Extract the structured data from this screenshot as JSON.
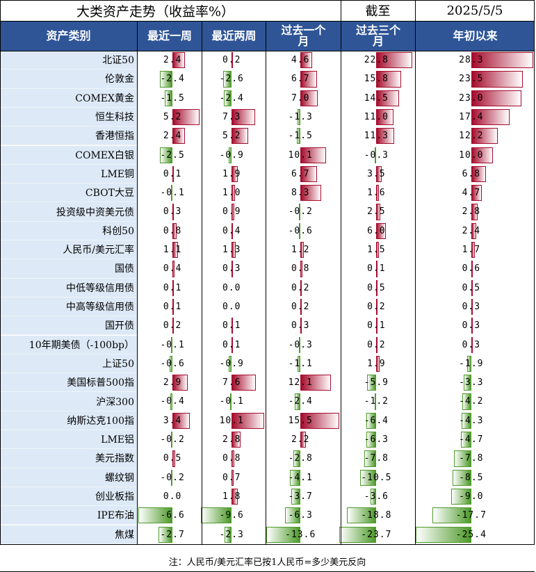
{
  "header": {
    "title": "大类资产走势（收益率%）",
    "as_of_label": "截至",
    "as_of_date": "2025/5/5"
  },
  "footnote": "注：人民币/美元汇率已按1人民币=多少美元反向",
  "colors": {
    "header_bg": "#2f5597",
    "name_bg": "#dde9f6",
    "positive": "#a50b2c",
    "negative": "#4e9a2a"
  },
  "chart_data": {
    "type": "table",
    "columns": [
      "资产类别",
      "最近一周",
      "最近两周",
      "过去一个月",
      "过去三个月",
      "年初以来"
    ],
    "rows": [
      {
        "asset": "北证50",
        "values": [
          2.4,
          0.2,
          4.6,
          22.8,
          28.3
        ]
      },
      {
        "asset": "伦敦金",
        "values": [
          -2.4,
          -2.6,
          6.7,
          15.8,
          23.5
        ]
      },
      {
        "asset": "COMEX黄金",
        "values": [
          -1.5,
          -2.4,
          7.0,
          14.5,
          23.0
        ]
      },
      {
        "asset": "恒生科技",
        "values": [
          5.2,
          7.3,
          -1.3,
          11.0,
          17.4
        ]
      },
      {
        "asset": "香港恒指",
        "values": [
          2.4,
          5.2,
          -1.5,
          11.3,
          12.2
        ]
      },
      {
        "asset": "COMEX白银",
        "values": [
          -2.5,
          -0.9,
          10.1,
          -0.3,
          10.0
        ]
      },
      {
        "asset": "LME铜",
        "values": [
          0.1,
          1.9,
          6.7,
          3.5,
          6.8
        ]
      },
      {
        "asset": "CBOT大豆",
        "values": [
          -0.1,
          1.0,
          8.3,
          1.6,
          4.7
        ]
      },
      {
        "asset": "投资级中资美元债",
        "values": [
          0.3,
          0.9,
          -0.2,
          2.5,
          2.8
        ]
      },
      {
        "asset": "科创50",
        "values": [
          0.8,
          0.4,
          -0.6,
          6.0,
          2.4
        ]
      },
      {
        "asset": "人民币/美元汇率",
        "values": [
          1.1,
          1.3,
          1.2,
          1.5,
          1.7
        ]
      },
      {
        "asset": "国债",
        "values": [
          0.4,
          0.3,
          0.8,
          0.1,
          0.6
        ]
      },
      {
        "asset": "中低等级信用债",
        "values": [
          0.1,
          0.0,
          0.2,
          0.5,
          0.5
        ]
      },
      {
        "asset": "中高等级信用债",
        "values": [
          0.1,
          0.0,
          0.2,
          0.2,
          0.3
        ]
      },
      {
        "asset": "国开债",
        "values": [
          0.2,
          0.1,
          0.3,
          0.1,
          0.3
        ]
      },
      {
        "asset": "10年期美债（-100bp）",
        "values": [
          -0.1,
          0.1,
          -0.3,
          0.2,
          0.3
        ]
      },
      {
        "asset": "上证50",
        "values": [
          -0.6,
          -0.9,
          -1.1,
          1.9,
          -1.9
        ]
      },
      {
        "asset": "美国标普500指",
        "values": [
          2.9,
          7.6,
          12.1,
          -5.9,
          -3.3
        ]
      },
      {
        "asset": "沪深300",
        "values": [
          -0.4,
          -0.1,
          -2.4,
          -1.2,
          -4.2
        ]
      },
      {
        "asset": "纳斯达克100指",
        "values": [
          3.4,
          10.1,
          15.5,
          -6.4,
          -4.3
        ]
      },
      {
        "asset": "LME铝",
        "values": [
          -0.2,
          2.8,
          2.2,
          -6.3,
          -4.7
        ]
      },
      {
        "asset": "美元指数",
        "values": [
          0.5,
          0.8,
          -2.8,
          -7.8,
          -7.8
        ]
      },
      {
        "asset": "螺纹钢",
        "values": [
          -0.2,
          0.7,
          -4.1,
          -10.5,
          -8.5
        ]
      },
      {
        "asset": "创业板指",
        "values": [
          0.0,
          1.8,
          -3.7,
          -3.6,
          -9.0
        ]
      },
      {
        "asset": "IPE布油",
        "values": [
          -6.6,
          -9.6,
          -6.3,
          -18.8,
          -17.7
        ]
      },
      {
        "asset": "焦煤",
        "values": [
          -2.7,
          -2.3,
          -13.6,
          -23.7,
          -25.4
        ]
      }
    ]
  }
}
